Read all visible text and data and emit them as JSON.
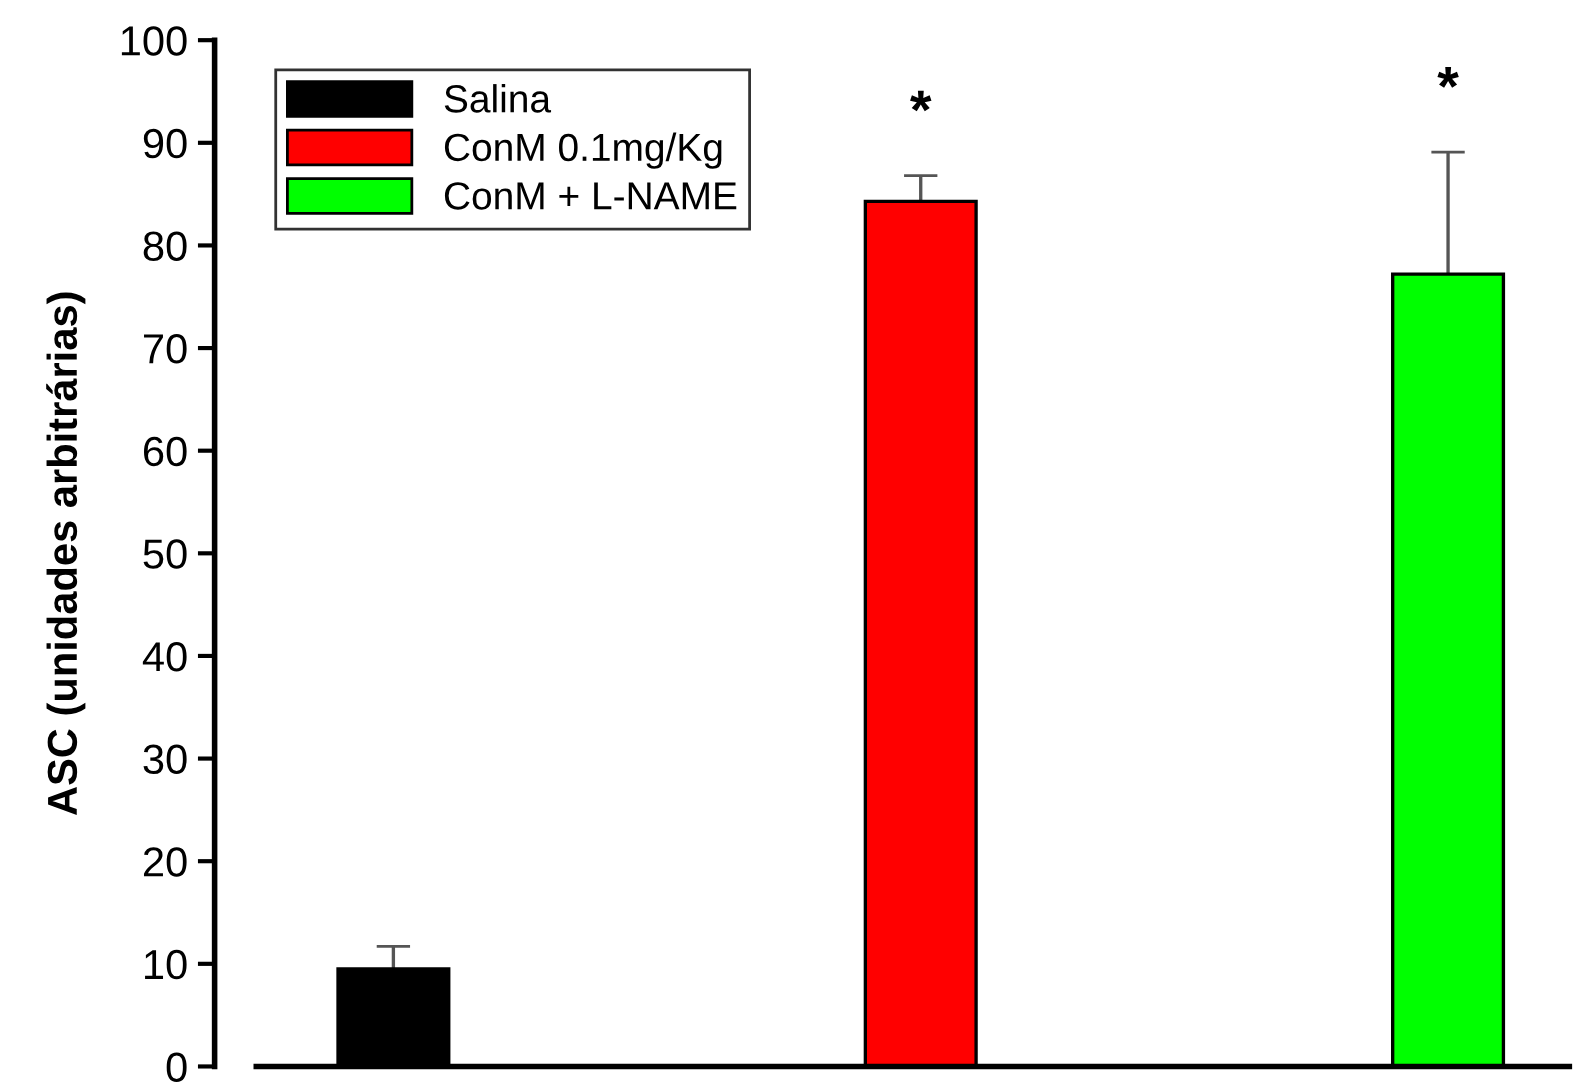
{
  "chart_data": {
    "type": "bar",
    "ylabel": "ASC (unidades arbitrárias)",
    "categories": [
      null,
      null,
      null
    ],
    "series": [
      {
        "name": "Salina",
        "color": "#000000",
        "values": [
          9.5,
          null,
          null
        ],
        "errors": [
          2.2,
          null,
          null
        ]
      },
      {
        "name": "ConM 0.1mg/Kg",
        "color": "#ff0000",
        "values": [
          null,
          84.3,
          null
        ],
        "errors": [
          null,
          2.5,
          null
        ]
      },
      {
        "name": "ConM + L-NAME",
        "color": "#00ff00",
        "values": [
          null,
          null,
          77.2
        ],
        "errors": [
          null,
          null,
          11.9
        ]
      }
    ],
    "ylim": [
      0,
      100
    ],
    "yticks": [
      0,
      10,
      20,
      30,
      40,
      50,
      60,
      70,
      80,
      90,
      100
    ],
    "annotations": [
      "*",
      "*"
    ],
    "legend": "top left",
    "grid": false
  }
}
